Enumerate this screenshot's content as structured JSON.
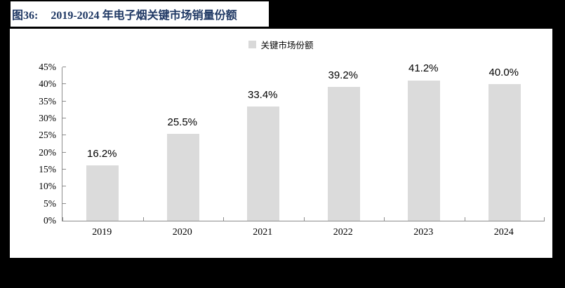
{
  "figure": {
    "label": "图36:",
    "title": "2019-2024 年电子烟关键市场销量份额"
  },
  "legend": {
    "label": "关键市场份额",
    "swatch_color": "#D9D9D9"
  },
  "colors": {
    "background": "#000000",
    "card": "#FFFFFF",
    "title_text": "#1F3864",
    "bar_fill": "#DBDBDB",
    "axis": "#8C8C8C",
    "label_text": "#000000"
  },
  "chart_data": {
    "type": "bar",
    "title": "2019-2024 年电子烟关键市场销量份额",
    "legend_entries": [
      "关键市场份额"
    ],
    "legend_position": "top-center",
    "categories": [
      "2019",
      "2020",
      "2021",
      "2022",
      "2023",
      "2024"
    ],
    "values": [
      16.2,
      25.5,
      33.4,
      39.2,
      41.2,
      40.0
    ],
    "data_labels": [
      "16.2%",
      "25.5%",
      "33.4%",
      "39.2%",
      "41.2%",
      "40.0%"
    ],
    "ylim": [
      0,
      45
    ],
    "ytick_step": 5,
    "ytick_labels": [
      "0%",
      "5%",
      "10%",
      "15%",
      "20%",
      "25%",
      "30%",
      "35%",
      "40%",
      "45%"
    ],
    "grid": false,
    "xlabel": "",
    "ylabel": ""
  }
}
